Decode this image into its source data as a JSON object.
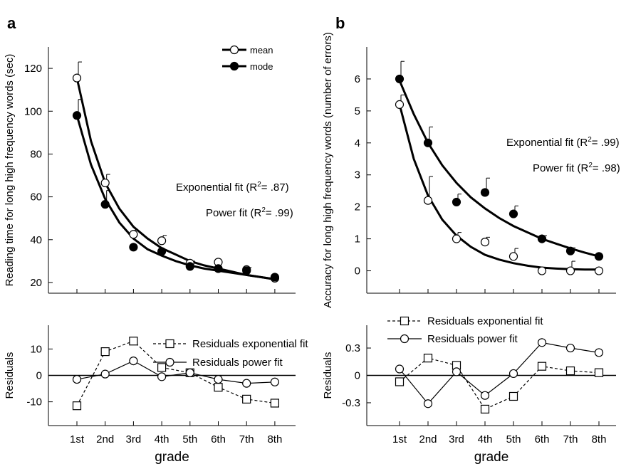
{
  "chart_data": [
    {
      "panel": "a",
      "type": "line",
      "ylabel": "Reading time for long high frequency words (sec)",
      "ylim": [
        15,
        130
      ],
      "yticks": [
        20,
        40,
        60,
        80,
        100,
        120
      ],
      "categories": [
        "1st",
        "2nd",
        "3rd",
        "4th",
        "5th",
        "6th",
        "7th",
        "8th"
      ],
      "legend": {
        "placement": "top-right",
        "mean_label": "mean",
        "mode_label": "mode"
      },
      "series": [
        {
          "name": "mean",
          "marker": "open-circle",
          "values": [
            115.5,
            66.5,
            42.5,
            39.5,
            29.0,
            29.5,
            26.0,
            22.0
          ],
          "errors": [
            7.5,
            4.0,
            2.0,
            2.5,
            1.0,
            0,
            1.0,
            0
          ]
        },
        {
          "name": "mode",
          "marker": "filled-circle",
          "values": [
            98.0,
            56.5,
            36.5,
            34.5,
            27.5,
            26.5,
            25.5,
            22.5
          ],
          "errors": [
            7.5,
            6.5,
            0,
            0,
            0,
            0,
            0,
            0
          ]
        }
      ],
      "fits": [
        {
          "name": "mean fit",
          "kind": "power",
          "points": [
            [
              1,
              115.5
            ],
            [
              1.5,
              86.0
            ],
            [
              2,
              66.5
            ],
            [
              2.5,
              54.5
            ],
            [
              3,
              46.0
            ],
            [
              3.5,
              40.5
            ],
            [
              4,
              36.0
            ],
            [
              4.5,
              33.0
            ],
            [
              5,
              30.0
            ],
            [
              5.5,
              28.0
            ],
            [
              6,
              26.5
            ],
            [
              6.5,
              25.0
            ],
            [
              7,
              23.5
            ],
            [
              7.5,
              22.5
            ],
            [
              8,
              21.5
            ]
          ]
        },
        {
          "name": "mode fit",
          "kind": "exponential",
          "points": [
            [
              1,
              98.0
            ],
            [
              1.5,
              75.0
            ],
            [
              2,
              59.0
            ],
            [
              2.5,
              48.0
            ],
            [
              3,
              40.5
            ],
            [
              3.5,
              35.5
            ],
            [
              4,
              32.5
            ],
            [
              4.5,
              30.0
            ],
            [
              5,
              28.0
            ],
            [
              5.5,
              26.5
            ],
            [
              6,
              25.5
            ],
            [
              6.5,
              24.5
            ],
            [
              7,
              23.5
            ],
            [
              7.5,
              22.5
            ],
            [
              8,
              21.5
            ]
          ]
        }
      ],
      "annotations": [
        {
          "text": "Exponential fit (R",
          "sup": "2",
          "tail": "= .87)"
        },
        {
          "text": "Power fit (R",
          "sup": "2",
          "tail": "= .99)"
        }
      ],
      "residuals": {
        "ylabel": "Residuals",
        "ylim": [
          -19,
          19
        ],
        "yticks": [
          -10,
          0,
          10
        ],
        "ytick_labels": [
          "-10",
          "0",
          "10"
        ],
        "series": [
          {
            "name": "Residuals exponential fit",
            "marker": "open-square",
            "dashed": true,
            "values": [
              -11.5,
              9.0,
              13.0,
              3.0,
              1.0,
              -4.5,
              -9.0,
              -10.5
            ]
          },
          {
            "name": "Residuals power fit",
            "marker": "open-circle",
            "dashed": false,
            "values": [
              -1.5,
              0.5,
              5.5,
              -0.5,
              1.0,
              -1.5,
              -3.0,
              -2.5
            ]
          }
        ]
      },
      "xlabel": "grade"
    },
    {
      "panel": "b",
      "type": "line",
      "ylabel": "Accuracy for long high frequency words (number of errors)",
      "ylim": [
        -0.7,
        7.0
      ],
      "yticks": [
        0,
        1,
        2,
        3,
        4,
        5,
        6
      ],
      "categories": [
        "1st",
        "2nd",
        "3rd",
        "4th",
        "5th",
        "6th",
        "7th",
        "8th"
      ],
      "series": [
        {
          "name": "mean",
          "marker": "open-circle",
          "values": [
            5.2,
            2.2,
            1.0,
            0.9,
            0.45,
            0.0,
            0.0,
            0.0
          ],
          "errors": [
            0.3,
            0.75,
            0.2,
            0.15,
            0.25,
            0,
            0.3,
            0
          ]
        },
        {
          "name": "mode",
          "marker": "filled-circle",
          "values": [
            6.0,
            4.0,
            2.15,
            2.45,
            1.78,
            1.0,
            0.62,
            0.45
          ],
          "errors": [
            0.55,
            0.5,
            0.25,
            0.45,
            0.25,
            0.1,
            0.1,
            0
          ]
        }
      ],
      "fits": [
        {
          "name": "mean fit",
          "kind": "exponential",
          "points": [
            [
              1,
              5.2
            ],
            [
              1.5,
              3.5
            ],
            [
              2,
              2.35
            ],
            [
              2.5,
              1.6
            ],
            [
              3,
              1.1
            ],
            [
              3.5,
              0.75
            ],
            [
              4,
              0.5
            ],
            [
              4.5,
              0.35
            ],
            [
              5,
              0.24
            ],
            [
              5.5,
              0.16
            ],
            [
              6,
              0.1
            ],
            [
              6.5,
              0.07
            ],
            [
              7,
              0.05
            ],
            [
              7.5,
              0.04
            ],
            [
              8,
              0.04
            ]
          ]
        },
        {
          "name": "mode fit",
          "kind": "power",
          "points": [
            [
              1,
              5.95
            ],
            [
              1.5,
              4.9
            ],
            [
              2,
              4.0
            ],
            [
              2.5,
              3.3
            ],
            [
              3,
              2.75
            ],
            [
              3.5,
              2.3
            ],
            [
              4,
              1.95
            ],
            [
              4.5,
              1.65
            ],
            [
              5,
              1.4
            ],
            [
              5.5,
              1.2
            ],
            [
              6,
              1.0
            ],
            [
              6.5,
              0.85
            ],
            [
              7,
              0.7
            ],
            [
              7.5,
              0.57
            ],
            [
              8,
              0.45
            ]
          ]
        }
      ],
      "annotations": [
        {
          "text": "Exponential fit (R",
          "sup": "2",
          "tail": "= .99)"
        },
        {
          "text": "Power fit (R",
          "sup": "2",
          "tail": "= .98)"
        }
      ],
      "residuals": {
        "ylabel": "Residuals",
        "ylim": [
          -0.55,
          0.55
        ],
        "yticks": [
          -0.3,
          0,
          0.3
        ],
        "ytick_labels": [
          "-0.3",
          "0",
          "0.3"
        ],
        "series": [
          {
            "name": "Residuals exponential fit",
            "marker": "open-square",
            "dashed": true,
            "values": [
              -0.07,
              0.19,
              0.11,
              -0.37,
              -0.23,
              0.1,
              0.05,
              0.03
            ]
          },
          {
            "name": "Residuals power fit",
            "marker": "open-circle",
            "dashed": false,
            "values": [
              0.07,
              -0.31,
              0.04,
              -0.22,
              0.02,
              0.36,
              0.3,
              0.25
            ]
          }
        ]
      },
      "xlabel": "grade"
    }
  ]
}
